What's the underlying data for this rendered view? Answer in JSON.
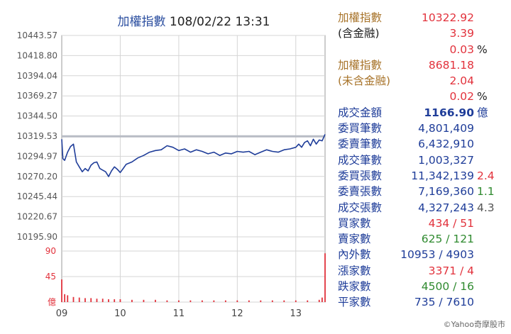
{
  "header": {
    "index_name": "加權指數",
    "datetime": "108/02/22 13:31"
  },
  "chart_data": {
    "type": "line",
    "title": "加權指數 108/02/22 13:31",
    "x_ticks": [
      "09",
      "10",
      "11",
      "12",
      "13"
    ],
    "y_ticks": [
      "10443.57",
      "10418.80",
      "10394.04",
      "10369.27",
      "10344.50",
      "10319.53",
      "10294.97",
      "10270.20",
      "10245.44",
      "10220.67",
      "10195.90"
    ],
    "ylim": [
      10195.9,
      10443.57
    ],
    "reference_value": 10319.53,
    "index_series": {
      "name": "加權指數",
      "x": [
        9.0,
        9.02,
        9.05,
        9.1,
        9.15,
        9.2,
        9.25,
        9.3,
        9.35,
        9.4,
        9.45,
        9.5,
        9.55,
        9.6,
        9.65,
        9.7,
        9.75,
        9.8,
        9.85,
        9.9,
        9.95,
        10.0,
        10.05,
        10.1,
        10.2,
        10.3,
        10.4,
        10.5,
        10.6,
        10.7,
        10.8,
        10.9,
        11.0,
        11.1,
        11.2,
        11.3,
        11.4,
        11.5,
        11.6,
        11.7,
        11.8,
        11.9,
        12.0,
        12.1,
        12.2,
        12.3,
        12.4,
        12.5,
        12.6,
        12.7,
        12.8,
        12.9,
        13.0,
        13.05,
        13.1,
        13.15,
        13.2,
        13.25,
        13.3,
        13.35,
        13.4,
        13.45,
        13.5
      ],
      "y": [
        10316,
        10292,
        10290,
        10300,
        10307,
        10310,
        10288,
        10282,
        10276,
        10280,
        10277,
        10284,
        10287,
        10288,
        10280,
        10278,
        10276,
        10270,
        10277,
        10282,
        10279,
        10275,
        10280,
        10285,
        10288,
        10293,
        10296,
        10300,
        10302,
        10303,
        10308,
        10306,
        10302,
        10304,
        10300,
        10303,
        10301,
        10298,
        10300,
        10296,
        10299,
        10298,
        10301,
        10300,
        10301,
        10297,
        10300,
        10303,
        10301,
        10300,
        10303,
        10304,
        10306,
        10310,
        10306,
        10312,
        10314,
        10308,
        10316,
        10310,
        10315,
        10314,
        10322
      ]
    },
    "volume": {
      "name": "億",
      "y_ticks": [
        "90",
        "45",
        "億"
      ],
      "ylim": [
        0,
        90
      ],
      "x": [
        9.0,
        9.05,
        9.1,
        9.2,
        9.3,
        9.4,
        9.5,
        9.6,
        9.7,
        9.8,
        9.9,
        10.0,
        10.2,
        10.4,
        10.6,
        10.8,
        11.0,
        11.2,
        11.4,
        11.6,
        11.8,
        12.0,
        12.2,
        12.4,
        12.6,
        12.8,
        13.0,
        13.2,
        13.4,
        13.45,
        13.5
      ],
      "values": [
        40,
        14,
        12,
        9,
        8,
        7,
        7,
        6,
        6,
        5,
        5,
        5,
        4,
        4,
        4,
        3,
        3,
        3,
        3,
        3,
        3,
        3,
        3,
        3,
        3,
        3,
        3,
        3,
        4,
        8,
        86
      ]
    }
  },
  "stats": [
    {
      "label": "加權指數",
      "value": "10322.92",
      "label_color": "#a8742b",
      "value_color": "#e2323c"
    },
    {
      "label": "(含金融)",
      "value": "3.39",
      "label_color": "#222222",
      "value_color": "#e2323c"
    },
    {
      "label": "",
      "value": "0.03",
      "extra": "%",
      "value_color": "#e2323c",
      "extra_color": "#222222"
    },
    {
      "label": "加權指數",
      "value": "8681.18",
      "label_color": "#a8742b",
      "value_color": "#e2323c"
    },
    {
      "label": "(未含金融)",
      "value": "2.04",
      "label_color": "#a8742b",
      "value_color": "#e2323c"
    },
    {
      "label": "",
      "value": "0.02",
      "extra": "%",
      "value_color": "#e2323c",
      "extra_color": "#222222"
    },
    {
      "label": "成交金額",
      "value": "1166.90",
      "extra": "億",
      "label_color": "#1f3d99",
      "value_color": "#1f3d99",
      "extra_color": "#1f3d99",
      "bold": true
    },
    {
      "label": "委買筆數",
      "value": "4,801,409",
      "label_color": "#1f3d99",
      "value_color": "#1f3d99"
    },
    {
      "label": "委賣筆數",
      "value": "6,432,910",
      "label_color": "#1f3d99",
      "value_color": "#1f3d99"
    },
    {
      "label": "成交筆數",
      "value": "1,003,327",
      "label_color": "#1f3d99",
      "value_color": "#1f3d99"
    },
    {
      "label": "委買張數",
      "value": "11,342,139",
      "extra": "2.4",
      "label_color": "#1f3d99",
      "value_color": "#1f3d99",
      "extra_color": "#e2323c"
    },
    {
      "label": "委賣張數",
      "value": "7,169,360",
      "extra": "1.1",
      "label_color": "#1f3d99",
      "value_color": "#1f3d99",
      "extra_color": "#2f8a2f"
    },
    {
      "label": "成交張數",
      "value": "4,327,243",
      "extra": "4.3",
      "label_color": "#1f3d99",
      "value_color": "#1f3d99",
      "extra_color": "#555555"
    },
    {
      "label": "買家數",
      "value": "434 / 51",
      "label_color": "#1f3d99",
      "value_color": "#e2323c"
    },
    {
      "label": "賣家數",
      "value": "625 / 121",
      "label_color": "#1f3d99",
      "value_color": "#2f8a2f"
    },
    {
      "label": "內外數",
      "value": "10953 / 4903",
      "label_color": "#1f3d99",
      "value_color": "#1f3d99"
    },
    {
      "label": "漲家數",
      "value": "3371 / 4",
      "label_color": "#1f3d99",
      "value_color": "#e2323c"
    },
    {
      "label": "跌家數",
      "value": "4500 / 16",
      "label_color": "#1f3d99",
      "value_color": "#2f8a2f"
    },
    {
      "label": "平家數",
      "value": "735 / 7610",
      "label_color": "#1f3d99",
      "value_color": "#1f3d99"
    }
  ],
  "credit": "©Yahoo奇摩股市",
  "colors": {
    "line": "#1f3d99",
    "reference": "#b8bcc4",
    "volume": "#e2323c",
    "grid": "#d5d5d5"
  }
}
